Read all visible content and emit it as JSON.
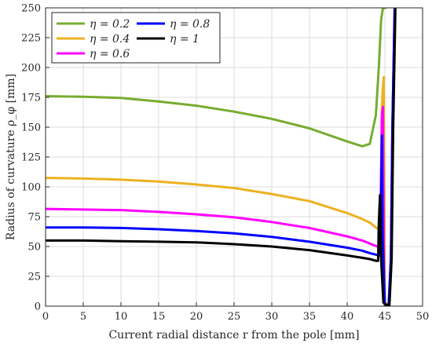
{
  "chart_data": {
    "type": "line",
    "xlabel": "Current radial distance r from the pole [mm]",
    "ylabel": "Radius of curvature ρ_φ [mm]",
    "xlim": [
      0,
      50
    ],
    "ylim": [
      0,
      250
    ],
    "xticks": [
      "0",
      "5",
      "10",
      "15",
      "20",
      "25",
      "30",
      "35",
      "40",
      "45",
      "50"
    ],
    "yticks": [
      "0",
      "25",
      "50",
      "75",
      "100",
      "125",
      "150",
      "175",
      "200",
      "225",
      "250"
    ],
    "grid": true,
    "legend_position": "top-left",
    "series": [
      {
        "name": "η = 0.2",
        "color": "#77AC30",
        "x": [
          0,
          5,
          10,
          15,
          20,
          25,
          30,
          35,
          40,
          42,
          43,
          43.8,
          44.2,
          44.5,
          44.75,
          44.9,
          45.1
        ],
        "y": [
          176,
          175.5,
          174.5,
          171.5,
          168,
          163,
          157,
          149,
          138,
          134,
          136,
          160,
          200,
          240,
          250,
          250,
          250
        ]
      },
      {
        "name": "η = 0.4",
        "color": "#EDB120",
        "x": [
          0,
          5,
          10,
          15,
          20,
          25,
          30,
          35,
          40,
          42,
          43,
          43.8,
          44.3,
          44.45,
          44.6,
          44.7,
          44.85,
          45,
          45.5,
          45.8,
          46,
          46.3
        ],
        "y": [
          107.5,
          107,
          106,
          104.5,
          102,
          99,
          94,
          88,
          78,
          73,
          70,
          66,
          64,
          90,
          165,
          180,
          192,
          2,
          2,
          40,
          150,
          250
        ]
      },
      {
        "name": "η = 0.6",
        "color": "#FF00FF",
        "x": [
          0,
          5,
          10,
          15,
          20,
          25,
          30,
          35,
          40,
          42,
          43,
          44,
          44.3,
          44.45,
          44.6,
          44.75,
          44.9,
          45.2,
          45.5,
          45.8,
          46,
          46.3
        ],
        "y": [
          81.5,
          81,
          80.5,
          79,
          77,
          74.5,
          70.5,
          65.5,
          58.5,
          55,
          52.5,
          50,
          49,
          80,
          160,
          167,
          4,
          1,
          1,
          40,
          150,
          250
        ]
      },
      {
        "name": "η = 0.8",
        "color": "#0000FF",
        "x": [
          0,
          5,
          10,
          15,
          20,
          25,
          30,
          35,
          40,
          42,
          43,
          43.9,
          44.3,
          44.5,
          44.6,
          44.7,
          45,
          45.5,
          45.8,
          46,
          46.3
        ],
        "y": [
          66,
          66,
          65.5,
          64.5,
          63,
          61,
          58,
          54,
          49,
          46.5,
          44.5,
          43,
          42.5,
          90,
          143,
          60,
          1,
          1,
          40,
          150,
          250
        ]
      },
      {
        "name": "η = 1",
        "color": "#000000",
        "x": [
          0,
          5,
          10,
          15,
          20,
          25,
          30,
          35,
          40,
          42,
          43,
          43.8,
          44.1,
          44.2,
          44.35,
          44.5,
          44.8,
          45.2,
          45.6,
          45.9,
          46.1,
          46.4
        ],
        "y": [
          55,
          55,
          54.5,
          54,
          53.5,
          52,
          50,
          47,
          42.5,
          40.5,
          39.5,
          38,
          38,
          70,
          93,
          40,
          3,
          1,
          1,
          40,
          150,
          250
        ]
      }
    ]
  }
}
